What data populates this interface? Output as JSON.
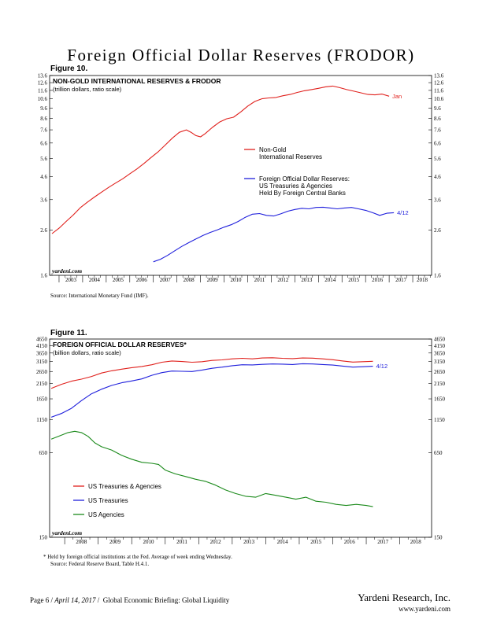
{
  "page": {
    "title": "Foreign Official Dollar Reserves (FRODOR)",
    "footer_page": "Page 6",
    "footer_date": "April 14, 2017",
    "footer_report": "Global Economic Briefing: Global Liquidity",
    "firm": "Yardeni Research, Inc.",
    "url": "www.yardeni.com"
  },
  "figures": {
    "fig10": {
      "label": "Figure 10.",
      "source": "Source: International Monetary Fund (IMF).",
      "watermark": "yardeni.com"
    },
    "fig11": {
      "label": "Figure 11.",
      "footnote": "*   Held by foreign official institutions at the Fed. Average of week ending Wednesday.",
      "source": "Source: Federal Reserve Board, Table H.4.1.",
      "watermark": "yardeni.com"
    }
  },
  "chart_data": [
    {
      "type": "line",
      "scale": "log",
      "title": "NON-GOLD INTERNATIONAL RESERVES & FRODOR",
      "subtitle": "(trillion dollars, ratio scale)",
      "xlim": [
        2002.6,
        2018.8
      ],
      "ylim": [
        1.6,
        13.6
      ],
      "yticks": [
        1.6,
        2.6,
        3.6,
        4.6,
        5.6,
        6.6,
        7.6,
        8.6,
        9.6,
        10.6,
        11.6,
        12.6,
        13.6
      ],
      "xticks": [
        "2003",
        "2004",
        "2005",
        "2006",
        "2007",
        "2008",
        "2009",
        "2010",
        "2011",
        "2012",
        "2013",
        "2014",
        "2015",
        "2016",
        "2017",
        "2018"
      ],
      "legend_position": "center-right",
      "series": [
        {
          "name": "Non-Gold International Reserves",
          "legend_lines": [
            "Non-Gold",
            "International Reserves"
          ],
          "color": "#e0201c",
          "end_label": "Jan",
          "x": [
            2002.7,
            2003.0,
            2003.3,
            2003.6,
            2003.9,
            2004.2,
            2004.5,
            2004.8,
            2005.1,
            2005.4,
            2005.7,
            2006.0,
            2006.3,
            2006.6,
            2006.9,
            2007.2,
            2007.5,
            2007.8,
            2008.1,
            2008.4,
            2008.6,
            2008.8,
            2009.0,
            2009.2,
            2009.5,
            2009.8,
            2010.1,
            2010.4,
            2010.7,
            2011.0,
            2011.3,
            2011.6,
            2011.9,
            2012.2,
            2012.5,
            2012.8,
            2013.1,
            2013.4,
            2013.7,
            2014.0,
            2014.3,
            2014.6,
            2014.9,
            2015.2,
            2015.5,
            2015.8,
            2016.1,
            2016.4,
            2016.7,
            2017.0
          ],
          "values": [
            2.5,
            2.65,
            2.85,
            3.05,
            3.3,
            3.5,
            3.7,
            3.9,
            4.1,
            4.3,
            4.5,
            4.75,
            5.0,
            5.3,
            5.65,
            6.0,
            6.45,
            6.95,
            7.4,
            7.6,
            7.4,
            7.15,
            7.05,
            7.3,
            7.8,
            8.25,
            8.55,
            8.7,
            9.2,
            9.8,
            10.3,
            10.6,
            10.7,
            10.75,
            10.95,
            11.1,
            11.35,
            11.55,
            11.7,
            11.85,
            12.05,
            12.15,
            11.95,
            11.7,
            11.5,
            11.3,
            11.1,
            11.05,
            11.15,
            10.9
          ]
        },
        {
          "name": "Foreign Official Dollar Reserves: US Treasuries & Agencies Held By Foreign Central Banks",
          "legend_lines": [
            "Foreign Official Dollar Reserves:",
            "US Treasuries & Agencies",
            "Held By Foreign Central Banks"
          ],
          "color": "#1f1fdc",
          "end_label": "4/12",
          "x": [
            2007.0,
            2007.3,
            2007.6,
            2007.9,
            2008.2,
            2008.5,
            2008.8,
            2009.1,
            2009.4,
            2009.7,
            2010.0,
            2010.3,
            2010.6,
            2010.9,
            2011.2,
            2011.5,
            2011.8,
            2012.1,
            2012.4,
            2012.7,
            2013.0,
            2013.3,
            2013.6,
            2013.9,
            2014.2,
            2014.5,
            2014.8,
            2015.1,
            2015.4,
            2015.7,
            2016.0,
            2016.3,
            2016.6,
            2016.9,
            2017.2
          ],
          "values": [
            1.85,
            1.9,
            1.98,
            2.08,
            2.18,
            2.27,
            2.36,
            2.45,
            2.53,
            2.6,
            2.68,
            2.75,
            2.85,
            2.98,
            3.08,
            3.1,
            3.04,
            3.02,
            3.09,
            3.18,
            3.24,
            3.28,
            3.26,
            3.31,
            3.32,
            3.29,
            3.26,
            3.29,
            3.31,
            3.26,
            3.21,
            3.13,
            3.04,
            3.11,
            3.13
          ]
        }
      ]
    },
    {
      "type": "line",
      "scale": "log",
      "title": "FOREIGN OFFICIAL DOLLAR RESERVES*",
      "subtitle": "(billion dollars, ratio scale)",
      "xlim": [
        2007.55,
        2018.95
      ],
      "ylim": [
        150,
        4650
      ],
      "yticks": [
        150,
        650,
        1150,
        1650,
        2150,
        2650,
        3150,
        3650,
        4150,
        4650
      ],
      "xticks": [
        "2008",
        "2009",
        "2010",
        "2011",
        "2012",
        "2013",
        "2014",
        "2015",
        "2016",
        "2017",
        "2018"
      ],
      "legend_position": "bottom-left",
      "series": [
        {
          "name": "US Treasuries & Agencies",
          "color": "#e0201c",
          "x": [
            2007.6,
            2007.9,
            2008.2,
            2008.5,
            2008.8,
            2009.1,
            2009.4,
            2009.7,
            2010.0,
            2010.3,
            2010.6,
            2010.9,
            2011.2,
            2011.5,
            2011.8,
            2012.1,
            2012.4,
            2012.7,
            2013.0,
            2013.3,
            2013.6,
            2013.9,
            2014.2,
            2014.5,
            2014.8,
            2015.1,
            2015.4,
            2015.7,
            2016.0,
            2016.3,
            2016.6,
            2016.9,
            2017.2
          ],
          "values": [
            1980,
            2120,
            2240,
            2320,
            2430,
            2580,
            2680,
            2760,
            2830,
            2890,
            2980,
            3110,
            3180,
            3150,
            3110,
            3140,
            3210,
            3240,
            3300,
            3330,
            3300,
            3350,
            3360,
            3330,
            3310,
            3350,
            3340,
            3300,
            3250,
            3180,
            3120,
            3140,
            3160
          ]
        },
        {
          "name": "US Treasuries",
          "color": "#1f1fdc",
          "end_label": "4/12",
          "x": [
            2007.6,
            2007.9,
            2008.2,
            2008.5,
            2008.8,
            2009.1,
            2009.4,
            2009.7,
            2010.0,
            2010.3,
            2010.6,
            2010.9,
            2011.2,
            2011.5,
            2011.8,
            2012.1,
            2012.4,
            2012.7,
            2013.0,
            2013.3,
            2013.6,
            2013.9,
            2014.2,
            2014.5,
            2014.8,
            2015.1,
            2015.4,
            2015.7,
            2016.0,
            2016.3,
            2016.6,
            2016.9,
            2017.2
          ],
          "values": [
            1200,
            1280,
            1400,
            1600,
            1800,
            1950,
            2080,
            2180,
            2250,
            2330,
            2480,
            2600,
            2670,
            2660,
            2650,
            2720,
            2800,
            2860,
            2930,
            2980,
            2970,
            3000,
            3020,
            3010,
            2990,
            3030,
            3020,
            2990,
            2960,
            2910,
            2860,
            2880,
            2900
          ]
        },
        {
          "name": "US Agencies",
          "color": "#1b8a1b",
          "x": [
            2007.6,
            2007.9,
            2008.1,
            2008.3,
            2008.5,
            2008.7,
            2008.9,
            2009.1,
            2009.4,
            2009.7,
            2010.0,
            2010.3,
            2010.6,
            2010.8,
            2011.0,
            2011.3,
            2011.6,
            2011.9,
            2012.2,
            2012.5,
            2012.8,
            2013.1,
            2013.4,
            2013.7,
            2014.0,
            2014.3,
            2014.6,
            2014.9,
            2015.2,
            2015.5,
            2015.8,
            2016.1,
            2016.4,
            2016.7,
            2017.0,
            2017.2
          ],
          "values": [
            820,
            880,
            920,
            940,
            920,
            860,
            770,
            720,
            680,
            620,
            580,
            550,
            540,
            530,
            480,
            450,
            430,
            410,
            395,
            370,
            340,
            320,
            305,
            300,
            320,
            310,
            300,
            290,
            300,
            280,
            275,
            265,
            260,
            265,
            260,
            255
          ]
        }
      ]
    }
  ]
}
